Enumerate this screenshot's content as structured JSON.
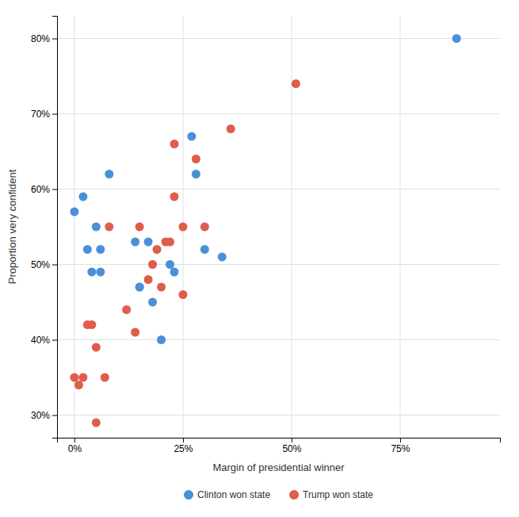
{
  "chart_data": {
    "type": "scatter",
    "xlabel": "Margin of presidential winner",
    "ylabel": "Proportion very confident",
    "series": [
      {
        "name": "Clinton won state",
        "color": "#4A90D9",
        "x": [
          0,
          2,
          3,
          4,
          5,
          6,
          6,
          8,
          14,
          15,
          15,
          17,
          18,
          20,
          22,
          23,
          27,
          28,
          30,
          34,
          88
        ],
        "values": [
          57,
          59,
          52,
          49,
          55,
          49,
          52,
          62,
          53,
          47,
          47,
          53,
          45,
          40,
          50,
          49,
          67,
          62,
          52,
          51,
          80
        ]
      },
      {
        "name": "Trump won state",
        "color": "#E05C4B",
        "x": [
          0,
          1,
          2,
          3,
          4,
          5,
          5,
          7,
          8,
          12,
          14,
          15,
          17,
          18,
          19,
          20,
          21,
          22,
          23,
          23,
          25,
          25,
          28,
          30,
          36,
          51
        ],
        "values": [
          35,
          34,
          35,
          42,
          42,
          29,
          39,
          35,
          55,
          44,
          41,
          55,
          48,
          50,
          52,
          47,
          53,
          53,
          66,
          59,
          55,
          46,
          64,
          55,
          68,
          74
        ]
      }
    ],
    "xlim": [
      -4,
      98
    ],
    "ylim": [
      27,
      83
    ],
    "xticks": [
      {
        "value": 0,
        "label": "0%"
      },
      {
        "value": 25,
        "label": "25%"
      },
      {
        "value": 50,
        "label": "50%"
      },
      {
        "value": 75,
        "label": "75%"
      }
    ],
    "yticks": [
      {
        "value": 30,
        "label": "30%"
      },
      {
        "value": 40,
        "label": "40%"
      },
      {
        "value": 50,
        "label": "50%"
      },
      {
        "value": 60,
        "label": "60%"
      },
      {
        "value": 70,
        "label": "70%"
      },
      {
        "value": 80,
        "label": "80%"
      }
    ],
    "grid": true,
    "legend": "bottom"
  }
}
